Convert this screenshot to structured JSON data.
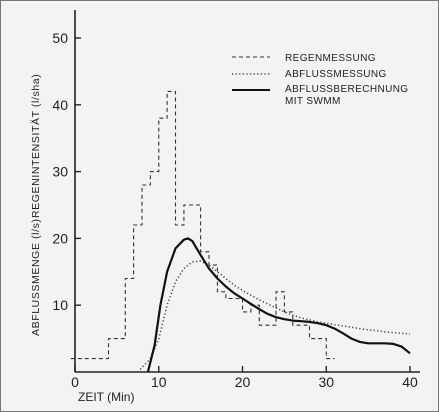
{
  "chart_data": {
    "type": "line",
    "xlabel": "ZEIT  (Min)",
    "ylabel_primary": "ABFLUSSMENGE  (l/s)",
    "ylabel_secondary": "REGENINTENSITÄT  (l/sha)",
    "xlim": [
      0,
      40
    ],
    "ylim": [
      0,
      50
    ],
    "x_ticks": [
      0,
      10,
      20,
      30,
      40
    ],
    "y_ticks": [
      10,
      20,
      30,
      40,
      50
    ],
    "grid": false,
    "legend_position": "top-right",
    "series": [
      {
        "name": "REGENMESSUNG",
        "style": "dashed",
        "color": "#333333",
        "x": [
          -0.5,
          4,
          4,
          6,
          6,
          7,
          7,
          8,
          8,
          9,
          9,
          10,
          10,
          11,
          11,
          12,
          12,
          13,
          13,
          15,
          15,
          16,
          16,
          17,
          17,
          18,
          18,
          20,
          20,
          21,
          21,
          22,
          22,
          24,
          24,
          25,
          25,
          26,
          26,
          28,
          28,
          30,
          30,
          31
        ],
        "y": [
          2,
          2,
          5,
          5,
          14,
          14,
          22,
          22,
          28,
          28,
          30,
          30,
          38,
          38,
          42,
          42,
          22,
          22,
          25,
          25,
          18,
          18,
          16,
          16,
          12,
          12,
          11,
          11,
          9,
          9,
          10,
          10,
          7,
          7,
          12,
          12,
          9,
          9,
          7,
          7,
          5,
          5,
          2,
          2
        ]
      },
      {
        "name": "ABFLUSSMESSUNG",
        "style": "dotted",
        "color": "#444444",
        "x": [
          7.5,
          9,
          10,
          11,
          12,
          13,
          14,
          15,
          16,
          17,
          18,
          19,
          20,
          21,
          22,
          23,
          24,
          25,
          26,
          27,
          28,
          29,
          30,
          31,
          32,
          33,
          34,
          35,
          36,
          37,
          38,
          39,
          40
        ],
        "y": [
          0,
          2,
          5,
          10,
          13.5,
          15.5,
          16.5,
          16.6,
          16,
          15,
          14,
          13,
          12.2,
          11.5,
          10.8,
          10.2,
          9.6,
          9,
          8.5,
          8.1,
          7.8,
          7.5,
          7.3,
          7.1,
          6.9,
          6.7,
          6.5,
          6.3,
          6.2,
          6,
          5.9,
          5.8,
          5.7
        ]
      },
      {
        "name": "ABFLUSSBERECHNUNG MIT SWMM",
        "legend_lines": [
          "ABFLUSSBERECHNUNG",
          "MIT  SWMM"
        ],
        "style": "solid",
        "color": "#111111",
        "x": [
          8.7,
          9.5,
          10.2,
          11,
          12,
          13,
          13.5,
          14,
          15,
          16,
          17,
          18,
          19,
          20,
          21,
          22,
          23,
          24,
          25,
          26,
          27,
          28,
          29,
          30,
          31,
          32,
          33,
          34,
          35,
          36,
          37,
          38,
          39,
          40
        ],
        "y": [
          0,
          4,
          10,
          15,
          18.5,
          19.8,
          20,
          19.6,
          17.5,
          15.5,
          14,
          12.8,
          11.8,
          11,
          10.2,
          9.4,
          8.7,
          8.2,
          7.9,
          7.7,
          7.6,
          7.5,
          7.3,
          7,
          6.5,
          5.8,
          5,
          4.5,
          4.3,
          4.3,
          4.3,
          4.2,
          3.8,
          2.8
        ]
      }
    ]
  }
}
